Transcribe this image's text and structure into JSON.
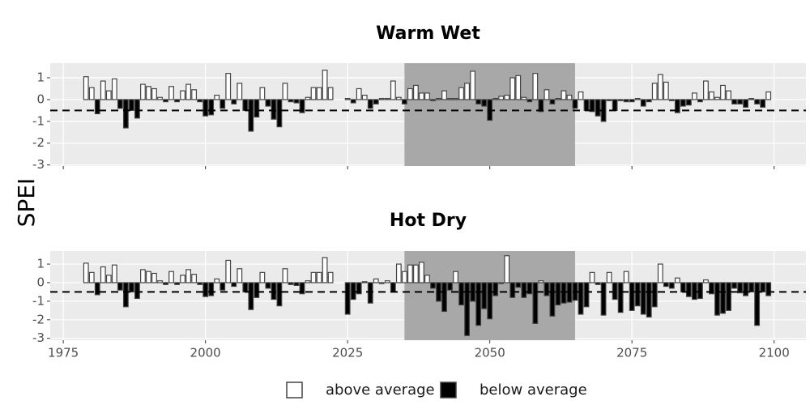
{
  "ylabel": "SPEI",
  "legend": [
    {
      "label": "above average",
      "color": "#ffffff"
    },
    {
      "label": "below average",
      "color": "#000000"
    }
  ],
  "chart_data": [
    {
      "type": "bar",
      "title": "Warm Wet",
      "x": [
        1979,
        1980,
        1981,
        1982,
        1983,
        1984,
        1985,
        1986,
        1987,
        1988,
        1989,
        1990,
        1991,
        1992,
        1993,
        1994,
        1995,
        1996,
        1997,
        1998,
        1999,
        2000,
        2001,
        2002,
        2003,
        2004,
        2005,
        2006,
        2007,
        2008,
        2009,
        2010,
        2011,
        2012,
        2013,
        2014,
        2015,
        2016,
        2017,
        2018,
        2019,
        2020,
        2021,
        2022,
        2025,
        2026,
        2027,
        2028,
        2029,
        2030,
        2031,
        2032,
        2033,
        2034,
        2035,
        2036,
        2037,
        2038,
        2039,
        2040,
        2041,
        2042,
        2043,
        2044,
        2045,
        2046,
        2047,
        2048,
        2049,
        2050,
        2051,
        2052,
        2053,
        2054,
        2055,
        2056,
        2057,
        2058,
        2059,
        2060,
        2061,
        2062,
        2063,
        2064,
        2065,
        2066,
        2067,
        2068,
        2069,
        2070,
        2071,
        2072,
        2073,
        2074,
        2075,
        2076,
        2077,
        2078,
        2079,
        2080,
        2081,
        2082,
        2083,
        2084,
        2085,
        2086,
        2087,
        2088,
        2089,
        2090,
        2091,
        2092,
        2093,
        2094,
        2095,
        2096,
        2097,
        2098,
        2099
      ],
      "values": [
        1.05,
        0.55,
        -0.65,
        0.85,
        0.4,
        0.95,
        -0.4,
        -1.3,
        -0.5,
        -0.85,
        0.7,
        0.6,
        0.5,
        0.1,
        -0.1,
        0.6,
        -0.1,
        0.4,
        0.7,
        0.45,
        -0.1,
        -0.75,
        -0.7,
        0.2,
        -0.4,
        1.2,
        -0.2,
        0.75,
        -0.5,
        -1.45,
        -0.8,
        0.55,
        -0.3,
        -0.9,
        -1.25,
        0.75,
        -0.1,
        -0.15,
        -0.6,
        0.1,
        0.55,
        0.55,
        1.35,
        0.55,
        0.05,
        -0.15,
        0.5,
        0.2,
        -0.4,
        -0.2,
        0.05,
        0.05,
        0.85,
        0.1,
        -0.2,
        0.5,
        0.65,
        0.3,
        0.3,
        -0.05,
        0.05,
        0.4,
        0.05,
        0.05,
        0.55,
        0.75,
        1.3,
        -0.2,
        -0.3,
        -0.95,
        0.05,
        0.15,
        0.2,
        1.0,
        1.1,
        0.1,
        -0.1,
        1.2,
        -0.55,
        0.45,
        -0.2,
        0.05,
        0.4,
        0.2,
        -0.4,
        0.35,
        -0.5,
        -0.55,
        -0.75,
        -1.0,
        -0.05,
        -0.5,
        -0.05,
        -0.1,
        -0.1,
        0.05,
        -0.3,
        -0.1,
        0.75,
        1.15,
        0.8,
        -0.05,
        -0.6,
        -0.3,
        -0.25,
        0.3,
        -0.1,
        0.85,
        0.35,
        0.1,
        0.65,
        0.4,
        -0.2,
        -0.2,
        -0.35,
        0.05,
        -0.2,
        -0.35,
        0.35
      ],
      "xlim": [
        1972.7,
        2105.6
      ],
      "xticks": [
        1975,
        2000,
        2025,
        2050,
        2075,
        2100
      ],
      "xtick_labels": false,
      "ylim": [
        -3.05,
        1.67
      ],
      "yticks": [
        -3,
        -2,
        -1,
        0,
        1
      ],
      "shaded_range": [
        2035,
        2065
      ],
      "shade_color": "#a8a8a8",
      "reference_line": -0.5,
      "grid": true
    },
    {
      "type": "bar",
      "title": "Hot Dry",
      "x": [
        1979,
        1980,
        1981,
        1982,
        1983,
        1984,
        1985,
        1986,
        1987,
        1988,
        1989,
        1990,
        1991,
        1992,
        1993,
        1994,
        1995,
        1996,
        1997,
        1998,
        1999,
        2000,
        2001,
        2002,
        2003,
        2004,
        2005,
        2006,
        2007,
        2008,
        2009,
        2010,
        2011,
        2012,
        2013,
        2014,
        2015,
        2016,
        2017,
        2018,
        2019,
        2020,
        2021,
        2022,
        2025,
        2026,
        2027,
        2028,
        2029,
        2030,
        2031,
        2032,
        2033,
        2034,
        2035,
        2036,
        2037,
        2038,
        2039,
        2040,
        2041,
        2042,
        2043,
        2044,
        2045,
        2046,
        2047,
        2048,
        2049,
        2050,
        2051,
        2052,
        2053,
        2054,
        2055,
        2056,
        2057,
        2058,
        2059,
        2060,
        2061,
        2062,
        2063,
        2064,
        2065,
        2066,
        2067,
        2068,
        2069,
        2070,
        2071,
        2072,
        2073,
        2074,
        2075,
        2076,
        2077,
        2078,
        2079,
        2080,
        2081,
        2082,
        2083,
        2084,
        2085,
        2086,
        2087,
        2088,
        2089,
        2090,
        2091,
        2092,
        2093,
        2094,
        2095,
        2096,
        2097,
        2098,
        2099
      ],
      "values": [
        1.05,
        0.55,
        -0.65,
        0.85,
        0.4,
        0.95,
        -0.4,
        -1.3,
        -0.5,
        -0.85,
        0.7,
        0.6,
        0.5,
        0.1,
        -0.1,
        0.6,
        -0.1,
        0.4,
        0.7,
        0.45,
        -0.1,
        -0.75,
        -0.7,
        0.2,
        -0.4,
        1.2,
        -0.2,
        0.75,
        -0.5,
        -1.45,
        -0.8,
        0.55,
        -0.3,
        -0.9,
        -1.25,
        0.75,
        -0.1,
        -0.15,
        -0.6,
        0.1,
        0.55,
        0.55,
        1.35,
        0.55,
        -1.7,
        -0.9,
        -0.6,
        0.05,
        -1.1,
        0.2,
        -0.05,
        0.1,
        -0.5,
        1.0,
        0.6,
        0.95,
        0.95,
        1.1,
        0.4,
        -0.3,
        -1.0,
        -1.55,
        -0.4,
        0.6,
        -1.2,
        -2.85,
        -1.0,
        -2.3,
        -1.4,
        -1.95,
        -0.7,
        -0.05,
        1.45,
        -0.8,
        -0.25,
        -0.8,
        -0.6,
        -2.2,
        0.1,
        -0.7,
        -1.8,
        -1.2,
        -1.1,
        -1.05,
        -0.95,
        -1.7,
        -1.3,
        0.55,
        -0.1,
        -1.75,
        0.55,
        -0.9,
        -1.6,
        0.6,
        -1.5,
        -1.25,
        -1.7,
        -1.85,
        -1.3,
        1.0,
        -0.2,
        -0.3,
        0.25,
        -0.5,
        -0.75,
        -0.9,
        -0.85,
        0.15,
        -0.6,
        -1.75,
        -1.65,
        -1.5,
        -0.3,
        -0.55,
        -0.7,
        -0.5,
        -2.3,
        -0.5,
        -0.7
      ],
      "xlim": [
        1972.7,
        2105.6
      ],
      "xticks": [
        1975,
        2000,
        2025,
        2050,
        2075,
        2100
      ],
      "xtick_labels": true,
      "ylim": [
        -3.1,
        1.7
      ],
      "yticks": [
        -3,
        -2,
        -1,
        0,
        1
      ],
      "shaded_range": [
        2035,
        2065
      ],
      "shade_color": "#a8a8a8",
      "reference_line": -0.5,
      "grid": true
    }
  ]
}
